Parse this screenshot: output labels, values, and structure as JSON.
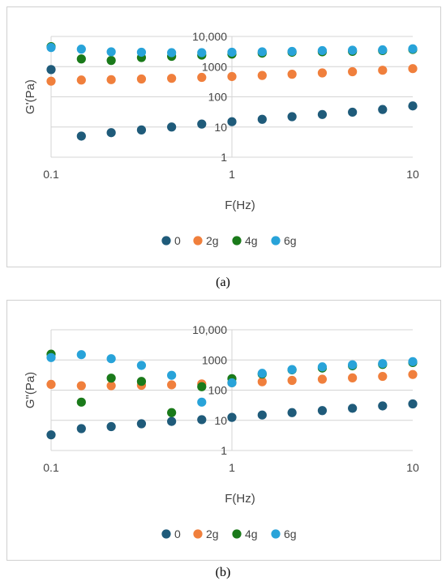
{
  "captions": {
    "a": "(a)",
    "b": "(b)"
  },
  "chart_data": [
    {
      "type": "scatter",
      "title": "",
      "xlabel": "F(Hz)",
      "ylabel": "G'(Pa)",
      "xscale": "log",
      "yscale": "log",
      "xlim": [
        0.1,
        10
      ],
      "ylim": [
        1,
        10000
      ],
      "x_ticks": [
        "0.1",
        "1",
        "10"
      ],
      "y_ticks": [
        "1",
        "10",
        "100",
        "1000",
        "10,000"
      ],
      "grid": "horizontal",
      "legend": "bottom",
      "series": [
        {
          "name": "0",
          "color": "#1f5b7a",
          "points": [
            [
              0.1,
              800
            ],
            [
              0.147,
              5
            ],
            [
              0.215,
              6.5
            ],
            [
              0.316,
              8
            ],
            [
              0.464,
              10
            ],
            [
              0.681,
              12.5
            ],
            [
              1,
              15
            ],
            [
              1.47,
              18
            ],
            [
              2.15,
              22
            ],
            [
              3.16,
              26
            ],
            [
              4.64,
              31
            ],
            [
              6.81,
              38
            ],
            [
              10,
              50
            ]
          ]
        },
        {
          "name": "2g",
          "color": "#f07f3c",
          "points": [
            [
              0.1,
              330
            ],
            [
              0.147,
              360
            ],
            [
              0.215,
              370
            ],
            [
              0.316,
              390
            ],
            [
              0.464,
              410
            ],
            [
              0.681,
              440
            ],
            [
              1,
              470
            ],
            [
              1.47,
              510
            ],
            [
              2.15,
              560
            ],
            [
              3.16,
              620
            ],
            [
              4.64,
              680
            ],
            [
              6.81,
              760
            ],
            [
              10,
              860
            ]
          ]
        },
        {
          "name": "4g",
          "color": "#1a7a1a",
          "points": [
            [
              0.1,
              4600
            ],
            [
              0.147,
              1800
            ],
            [
              0.215,
              1600
            ],
            [
              0.316,
              2000
            ],
            [
              0.464,
              2200
            ],
            [
              0.681,
              2400
            ],
            [
              1,
              2600
            ],
            [
              1.47,
              2800
            ],
            [
              2.15,
              3000
            ],
            [
              3.16,
              3100
            ],
            [
              4.64,
              3200
            ],
            [
              6.81,
              3400
            ],
            [
              10,
              3700
            ]
          ]
        },
        {
          "name": "6g",
          "color": "#28a3d9",
          "points": [
            [
              0.1,
              4300
            ],
            [
              0.147,
              3800
            ],
            [
              0.215,
              3100
            ],
            [
              0.316,
              3000
            ],
            [
              0.464,
              2900
            ],
            [
              0.681,
              2900
            ],
            [
              1,
              3000
            ],
            [
              1.47,
              3100
            ],
            [
              2.15,
              3200
            ],
            [
              3.16,
              3400
            ],
            [
              4.64,
              3500
            ],
            [
              6.81,
              3600
            ],
            [
              10,
              3900
            ]
          ]
        }
      ]
    },
    {
      "type": "scatter",
      "title": "",
      "xlabel": "F(Hz)",
      "ylabel": "G\"(Pa)",
      "xscale": "log",
      "yscale": "log",
      "xlim": [
        0.1,
        10
      ],
      "ylim": [
        1,
        10000
      ],
      "x_ticks": [
        "0.1",
        "1",
        "10"
      ],
      "y_ticks": [
        "1",
        "10",
        "100",
        "1000",
        "10,000"
      ],
      "grid": "horizontal",
      "legend": "bottom",
      "series": [
        {
          "name": "0",
          "color": "#1f5b7a",
          "points": [
            [
              0.1,
              3.3
            ],
            [
              0.147,
              5.3
            ],
            [
              0.215,
              6.2
            ],
            [
              0.316,
              7.7
            ],
            [
              0.464,
              9.2
            ],
            [
              0.681,
              10.5
            ],
            [
              1,
              12.5
            ],
            [
              1.47,
              15
            ],
            [
              2.15,
              18
            ],
            [
              3.16,
              21
            ],
            [
              4.64,
              25
            ],
            [
              6.81,
              30
            ],
            [
              10,
              35
            ]
          ]
        },
        {
          "name": "2g",
          "color": "#f07f3c",
          "points": [
            [
              0.1,
              155
            ],
            [
              0.147,
              140
            ],
            [
              0.215,
              140
            ],
            [
              0.316,
              145
            ],
            [
              0.464,
              150
            ],
            [
              0.681,
              160
            ],
            [
              1,
              175
            ],
            [
              1.47,
              190
            ],
            [
              2.15,
              210
            ],
            [
              3.16,
              230
            ],
            [
              4.64,
              255
            ],
            [
              6.81,
              285
            ],
            [
              10,
              330
            ]
          ]
        },
        {
          "name": "4g",
          "color": "#1a7a1a",
          "points": [
            [
              0.1,
              1550
            ],
            [
              0.147,
              40
            ],
            [
              0.215,
              250
            ],
            [
              0.316,
              195
            ],
            [
              0.464,
              18
            ],
            [
              0.681,
              130
            ],
            [
              1,
              240
            ],
            [
              1.47,
              340
            ],
            [
              2.15,
              470
            ],
            [
              3.16,
              540
            ],
            [
              4.64,
              640
            ],
            [
              6.81,
              710
            ],
            [
              10,
              820
            ]
          ]
        },
        {
          "name": "6g",
          "color": "#28a3d9",
          "points": [
            [
              0.1,
              1200
            ],
            [
              0.147,
              1500
            ],
            [
              0.215,
              1100
            ],
            [
              0.316,
              660
            ],
            [
              0.464,
              310
            ],
            [
              0.681,
              40
            ],
            [
              1,
              175
            ],
            [
              1.47,
              360
            ],
            [
              2.15,
              480
            ],
            [
              3.16,
              590
            ],
            [
              4.64,
              690
            ],
            [
              6.81,
              760
            ],
            [
              10,
              880
            ]
          ]
        }
      ]
    }
  ]
}
